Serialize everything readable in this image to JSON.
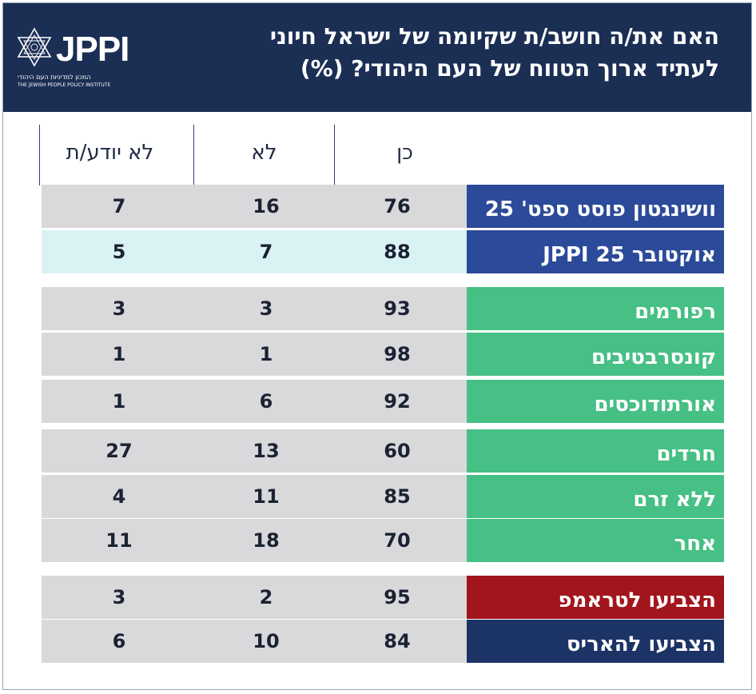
{
  "header": {
    "title": "האם את/ה חושב/ת שקיומה של ישראל חיוני לעתיד ארוך הטווח של העם היהודי? (%)",
    "logo_text": "JPPI",
    "logo_subtitle_hebrew": "המכון למדיניות העם היהודי",
    "logo_subtitle_english": "THE JEWISH PEOPLE POLICY INSTITUTE"
  },
  "colors": {
    "header_bg": "#1b2f55",
    "blue_label": "#2b4a99",
    "green_label": "#46c084",
    "red_label": "#a3151c",
    "navy_label": "#1c3366",
    "row_gray": "#d9d9db",
    "row_light_cyan": "#d9f3f5"
  },
  "chart_data": {
    "type": "table",
    "columns": [
      "כן",
      "לא",
      "לא יודע/ת"
    ],
    "rows": [
      {
        "label": "וושינגטון פוסט ספט' 25",
        "values": [
          76,
          16,
          7
        ],
        "label_color": "blue",
        "row_color": "gray"
      },
      {
        "label": "אוקטובר 25 JPPI",
        "values": [
          88,
          7,
          5
        ],
        "label_color": "blue",
        "row_color": "light-cyan"
      },
      {
        "label": "רפורמים",
        "values": [
          93,
          3,
          3
        ],
        "label_color": "green",
        "row_color": "gray"
      },
      {
        "label": "קונסרבטיבים",
        "values": [
          98,
          1,
          1
        ],
        "label_color": "green",
        "row_color": "gray"
      },
      {
        "label": "אורתודוכסים",
        "values": [
          92,
          6,
          1
        ],
        "label_color": "green",
        "row_color": "gray"
      },
      {
        "label": "חרדים",
        "values": [
          60,
          13,
          27
        ],
        "label_color": "green",
        "row_color": "gray"
      },
      {
        "label": "ללא זרם",
        "values": [
          85,
          11,
          4
        ],
        "label_color": "green",
        "row_color": "gray"
      },
      {
        "label": "אחר",
        "values": [
          70,
          18,
          11
        ],
        "label_color": "green",
        "row_color": "gray"
      },
      {
        "label": "הצביעו לטראמפ",
        "values": [
          95,
          2,
          3
        ],
        "label_color": "red",
        "row_color": "gray"
      },
      {
        "label": "הצביעו להאריס",
        "values": [
          84,
          10,
          6
        ],
        "label_color": "navy",
        "row_color": "gray"
      }
    ]
  }
}
